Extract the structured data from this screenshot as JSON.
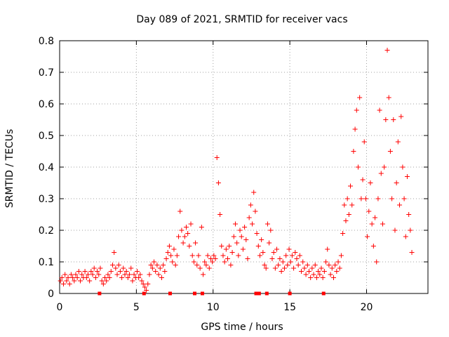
{
  "chart_data": {
    "type": "scatter",
    "title": "Day 089 of 2021, SRMTID for receiver vacs",
    "xlabel": "GPS time / hours",
    "ylabel": "SRMTID / TECUs",
    "xlim": [
      0,
      24
    ],
    "ylim": [
      0,
      0.8
    ],
    "xticks": [
      0,
      5,
      10,
      15,
      20
    ],
    "xtick_labels": [
      "0",
      "5",
      "10",
      "15",
      "20"
    ],
    "yticks": [
      0,
      0.1,
      0.2,
      0.3,
      0.4,
      0.5,
      0.6,
      0.7,
      0.8
    ],
    "ytick_labels": [
      "0",
      "0.1",
      "0.2",
      "0.3",
      "0.4",
      "0.5",
      "0.6",
      "0.7",
      "0.8"
    ],
    "grid": true,
    "marker": "+",
    "color": "#ff0000",
    "series": [
      {
        "name": "SRMTID",
        "points": [
          [
            0.05,
            0.04
          ],
          [
            0.15,
            0.05
          ],
          [
            0.25,
            0.03
          ],
          [
            0.35,
            0.06
          ],
          [
            0.45,
            0.04
          ],
          [
            0.55,
            0.05
          ],
          [
            0.65,
            0.03
          ],
          [
            0.75,
            0.06
          ],
          [
            0.85,
            0.05
          ],
          [
            0.95,
            0.04
          ],
          [
            1.05,
            0.06
          ],
          [
            1.15,
            0.05
          ],
          [
            1.25,
            0.07
          ],
          [
            1.35,
            0.04
          ],
          [
            1.45,
            0.06
          ],
          [
            1.55,
            0.05
          ],
          [
            1.65,
            0.07
          ],
          [
            1.75,
            0.05
          ],
          [
            1.85,
            0.06
          ],
          [
            1.95,
            0.04
          ],
          [
            2.05,
            0.07
          ],
          [
            2.15,
            0.06
          ],
          [
            2.25,
            0.08
          ],
          [
            2.35,
            0.05
          ],
          [
            2.45,
            0.07
          ],
          [
            2.55,
            0.06
          ],
          [
            2.65,
            0.08
          ],
          [
            2.75,
            0.04
          ],
          [
            2.85,
            0.03
          ],
          [
            2.95,
            0.05
          ],
          [
            3.05,
            0.04
          ],
          [
            3.15,
            0.06
          ],
          [
            3.25,
            0.05
          ],
          [
            3.35,
            0.07
          ],
          [
            3.45,
            0.09
          ],
          [
            3.55,
            0.13
          ],
          [
            3.65,
            0.08
          ],
          [
            3.75,
            0.06
          ],
          [
            3.85,
            0.09
          ],
          [
            3.95,
            0.07
          ],
          [
            4.05,
            0.05
          ],
          [
            4.15,
            0.08
          ],
          [
            4.25,
            0.06
          ],
          [
            4.35,
            0.07
          ],
          [
            4.45,
            0.05
          ],
          [
            4.55,
            0.06
          ],
          [
            4.65,
            0.08
          ],
          [
            4.75,
            0.04
          ],
          [
            4.85,
            0.06
          ],
          [
            4.95,
            0.05
          ],
          [
            5.05,
            0.07
          ],
          [
            5.15,
            0.05
          ],
          [
            5.25,
            0.06
          ],
          [
            5.35,
            0.04
          ],
          [
            5.45,
            0.03
          ],
          [
            5.55,
            0.02
          ],
          [
            5.65,
            0.01
          ],
          [
            5.75,
            0.03
          ],
          [
            5.85,
            0.06
          ],
          [
            5.95,
            0.09
          ],
          [
            6.05,
            0.08
          ],
          [
            6.15,
            0.1
          ],
          [
            6.25,
            0.07
          ],
          [
            6.35,
            0.09
          ],
          [
            6.45,
            0.06
          ],
          [
            6.55,
            0.08
          ],
          [
            6.65,
            0.05
          ],
          [
            6.75,
            0.09
          ],
          [
            6.85,
            0.07
          ],
          [
            6.95,
            0.11
          ],
          [
            7.05,
            0.13
          ],
          [
            7.15,
            0.15
          ],
          [
            7.25,
            0.12
          ],
          [
            7.35,
            0.1
          ],
          [
            7.45,
            0.14
          ],
          [
            7.55,
            0.09
          ],
          [
            7.65,
            0.12
          ],
          [
            7.75,
            0.18
          ],
          [
            7.85,
            0.26
          ],
          [
            7.95,
            0.2
          ],
          [
            8.05,
            0.16
          ],
          [
            8.15,
            0.18
          ],
          [
            8.25,
            0.21
          ],
          [
            8.35,
            0.19
          ],
          [
            8.45,
            0.15
          ],
          [
            8.55,
            0.22
          ],
          [
            8.65,
            0.12
          ],
          [
            8.75,
            0.1
          ],
          [
            8.85,
            0.16
          ],
          [
            8.95,
            0.09
          ],
          [
            9.05,
            0.12
          ],
          [
            9.15,
            0.08
          ],
          [
            9.25,
            0.21
          ],
          [
            9.35,
            0.06
          ],
          [
            9.45,
            0.1
          ],
          [
            9.55,
            0.09
          ],
          [
            9.65,
            0.12
          ],
          [
            9.75,
            0.08
          ],
          [
            9.85,
            0.11
          ],
          [
            9.95,
            0.1
          ],
          [
            10.05,
            0.12
          ],
          [
            10.15,
            0.11
          ],
          [
            10.25,
            0.43
          ],
          [
            10.35,
            0.35
          ],
          [
            10.45,
            0.25
          ],
          [
            10.55,
            0.15
          ],
          [
            10.65,
            0.12
          ],
          [
            10.75,
            0.1
          ],
          [
            10.85,
            0.14
          ],
          [
            10.95,
            0.11
          ],
          [
            11.05,
            0.15
          ],
          [
            11.15,
            0.09
          ],
          [
            11.25,
            0.13
          ],
          [
            11.35,
            0.18
          ],
          [
            11.45,
            0.22
          ],
          [
            11.55,
            0.16
          ],
          [
            11.65,
            0.12
          ],
          [
            11.75,
            0.2
          ],
          [
            11.85,
            0.18
          ],
          [
            11.95,
            0.14
          ],
          [
            12.05,
            0.21
          ],
          [
            12.15,
            0.17
          ],
          [
            12.25,
            0.11
          ],
          [
            12.35,
            0.24
          ],
          [
            12.45,
            0.28
          ],
          [
            12.55,
            0.22
          ],
          [
            12.65,
            0.32
          ],
          [
            12.75,
            0.26
          ],
          [
            12.85,
            0.19
          ],
          [
            12.95,
            0.15
          ],
          [
            13.05,
            0.12
          ],
          [
            13.15,
            0.17
          ],
          [
            13.25,
            0.13
          ],
          [
            13.35,
            0.09
          ],
          [
            13.45,
            0.08
          ],
          [
            13.55,
            0.22
          ],
          [
            13.65,
            0.16
          ],
          [
            13.75,
            0.2
          ],
          [
            13.85,
            0.11
          ],
          [
            13.95,
            0.13
          ],
          [
            14.05,
            0.08
          ],
          [
            14.15,
            0.14
          ],
          [
            14.25,
            0.09
          ],
          [
            14.35,
            0.11
          ],
          [
            14.45,
            0.07
          ],
          [
            14.55,
            0.1
          ],
          [
            14.65,
            0.08
          ],
          [
            14.75,
            0.12
          ],
          [
            14.85,
            0.09
          ],
          [
            14.95,
            0.14
          ],
          [
            15.05,
            0.1
          ],
          [
            15.15,
            0.12
          ],
          [
            15.25,
            0.08
          ],
          [
            15.35,
            0.13
          ],
          [
            15.45,
            0.11
          ],
          [
            15.55,
            0.09
          ],
          [
            15.65,
            0.12
          ],
          [
            15.75,
            0.07
          ],
          [
            15.85,
            0.1
          ],
          [
            15.95,
            0.08
          ],
          [
            16.05,
            0.06
          ],
          [
            16.15,
            0.09
          ],
          [
            16.25,
            0.07
          ],
          [
            16.35,
            0.05
          ],
          [
            16.45,
            0.08
          ],
          [
            16.55,
            0.06
          ],
          [
            16.65,
            0.09
          ],
          [
            16.75,
            0.05
          ],
          [
            16.85,
            0.07
          ],
          [
            16.95,
            0.06
          ],
          [
            17.05,
            0.08
          ],
          [
            17.15,
            0.05
          ],
          [
            17.25,
            0.07
          ],
          [
            17.35,
            0.1
          ],
          [
            17.45,
            0.14
          ],
          [
            17.55,
            0.09
          ],
          [
            17.65,
            0.06
          ],
          [
            17.75,
            0.08
          ],
          [
            17.85,
            0.05
          ],
          [
            17.95,
            0.09
          ],
          [
            18.05,
            0.07
          ],
          [
            18.15,
            0.1
          ],
          [
            18.25,
            0.08
          ],
          [
            18.35,
            0.12
          ],
          [
            18.45,
            0.19
          ],
          [
            18.55,
            0.28
          ],
          [
            18.65,
            0.23
          ],
          [
            18.75,
            0.3
          ],
          [
            18.85,
            0.25
          ],
          [
            18.95,
            0.34
          ],
          [
            19.05,
            0.28
          ],
          [
            19.15,
            0.45
          ],
          [
            19.25,
            0.52
          ],
          [
            19.35,
            0.58
          ],
          [
            19.45,
            0.4
          ],
          [
            19.55,
            0.62
          ],
          [
            19.65,
            0.3
          ],
          [
            19.75,
            0.36
          ],
          [
            19.85,
            0.48
          ],
          [
            19.95,
            0.3
          ],
          [
            20.05,
            0.18
          ],
          [
            20.15,
            0.26
          ],
          [
            20.25,
            0.35
          ],
          [
            20.35,
            0.22
          ],
          [
            20.45,
            0.15
          ],
          [
            20.55,
            0.24
          ],
          [
            20.65,
            0.1
          ],
          [
            20.75,
            0.3
          ],
          [
            20.85,
            0.58
          ],
          [
            20.95,
            0.38
          ],
          [
            21.05,
            0.22
          ],
          [
            21.15,
            0.4
          ],
          [
            21.25,
            0.55
          ],
          [
            21.35,
            0.77
          ],
          [
            21.45,
            0.62
          ],
          [
            21.55,
            0.45
          ],
          [
            21.65,
            0.3
          ],
          [
            21.75,
            0.55
          ],
          [
            21.85,
            0.2
          ],
          [
            21.95,
            0.35
          ],
          [
            22.05,
            0.48
          ],
          [
            22.15,
            0.28
          ],
          [
            22.25,
            0.56
          ],
          [
            22.35,
            0.4
          ],
          [
            22.45,
            0.3
          ],
          [
            22.55,
            0.18
          ],
          [
            22.65,
            0.37
          ],
          [
            22.75,
            0.25
          ],
          [
            22.85,
            0.2
          ],
          [
            22.95,
            0.13
          ]
        ],
        "zero_marks": [
          2.6,
          5.5,
          7.2,
          8.8,
          9.3,
          12.8,
          13.0,
          13.5,
          15.0,
          17.2
        ]
      }
    ]
  }
}
